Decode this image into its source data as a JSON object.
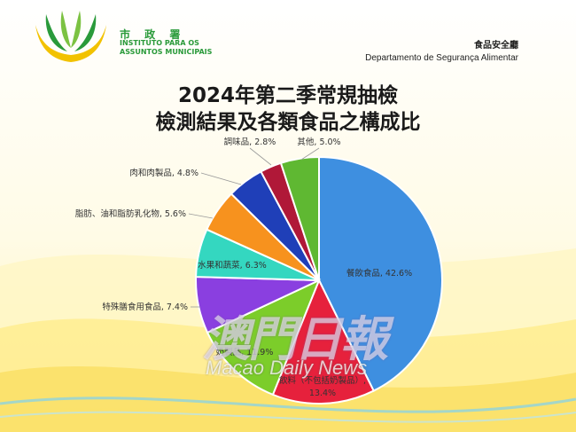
{
  "header": {
    "org_name_cn": "市 政 署",
    "org_name_pt_line1": "INSTITUTO PARA OS",
    "org_name_pt_line2": "ASSUNTOS MUNICIPAIS",
    "dept_name_cn": "食品安全廳",
    "dept_name_pt": "Departamento de Segurança Alimentar"
  },
  "watermark": {
    "text_cn": "澳門日報",
    "text_en": "Macao Daily News"
  },
  "colors": {
    "brand_green": "#2a9a3a",
    "brand_yellow": "#f2c200"
  },
  "chart_data": {
    "type": "pie",
    "title": "2024年第二季常規抽檢",
    "subtitle": "檢測結果及各類食品之構成比",
    "start_angle_deg": 0,
    "direction": "clockwise",
    "slices": [
      {
        "label": "餐飲食品, 42.6%",
        "name": "餐飲食品",
        "value": 42.6,
        "color": "#3e8fe0"
      },
      {
        "label": "飲料（不包括奶製品）, 13.4%",
        "name": "飲料（不包括奶製品）",
        "value": 13.4,
        "color": "#e6213c"
      },
      {
        "label": "奶製品, 11.9%",
        "name": "奶製品",
        "value": 11.9,
        "color": "#7ccd2a"
      },
      {
        "label": "特殊膳食用食品, 7.4%",
        "name": "特殊膳食用食品",
        "value": 7.4,
        "color": "#8a3fe0"
      },
      {
        "label": "水果和蔬菜, 6.3%",
        "name": "水果和蔬菜",
        "value": 6.3,
        "color": "#34d7c0"
      },
      {
        "label": "脂肪、油和脂肪乳化物, 5.6%",
        "name": "脂肪、油和脂肪乳化物",
        "value": 5.6,
        "color": "#f7921e"
      },
      {
        "label": "肉和肉製品, 4.8%",
        "name": "肉和肉製品",
        "value": 4.8,
        "color": "#1f3fb8"
      },
      {
        "label": "調味品, 2.8%",
        "name": "調味品",
        "value": 2.8,
        "color": "#b01838"
      },
      {
        "label": "其他, 5.0%",
        "name": "其他",
        "value": 5.0,
        "color": "#5fb832"
      }
    ]
  }
}
